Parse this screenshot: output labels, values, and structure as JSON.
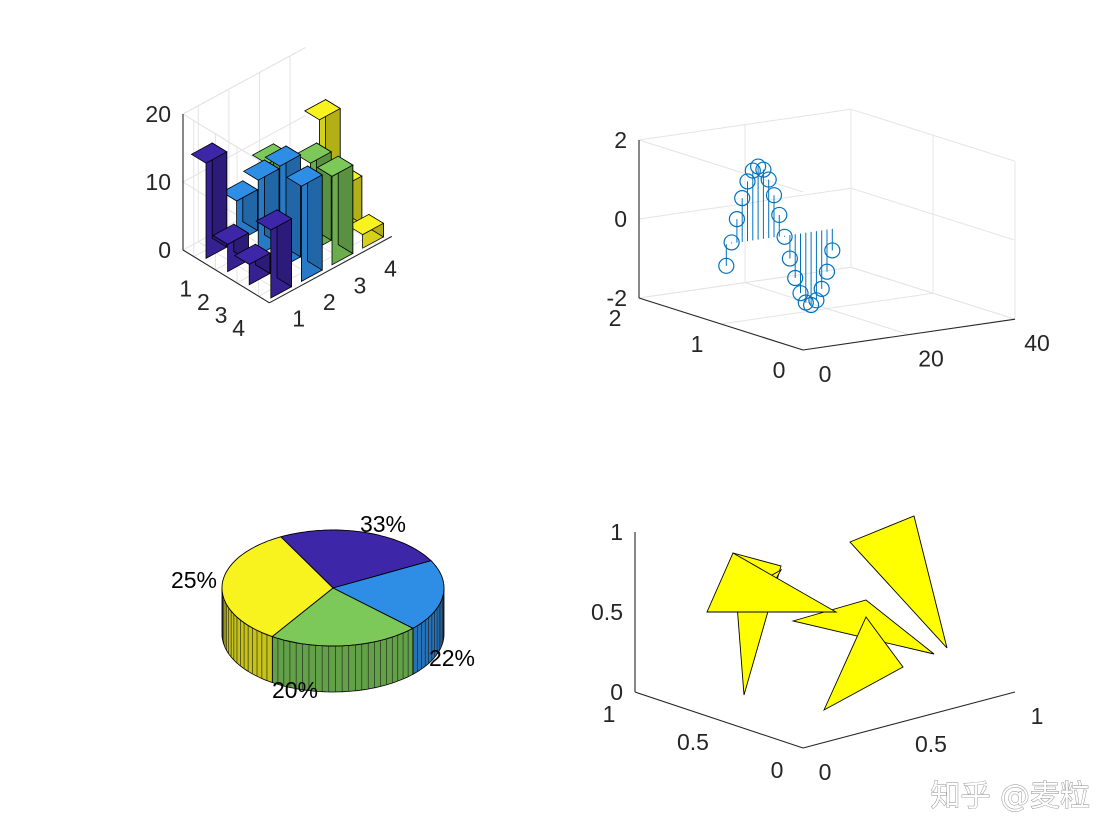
{
  "chart_data": [
    {
      "type": "bar3",
      "rows": [
        "1",
        "2",
        "3",
        "4"
      ],
      "columns": [
        "1",
        "2",
        "3",
        "4"
      ],
      "values": [
        [
          14,
          6,
          9,
          3
        ],
        [
          4,
          11,
          7,
          15
        ],
        [
          3,
          15,
          13,
          7
        ],
        [
          10,
          14,
          13,
          2
        ]
      ],
      "zlim": [
        0,
        20
      ],
      "z_ticks": [
        "0",
        "10",
        "20"
      ],
      "grid": true,
      "colors": [
        "#3e26a8",
        "#2e8ee6",
        "#7cc95a",
        "#f8f31e"
      ]
    },
    {
      "type": "stem3",
      "n_points": 21,
      "x_range": [
        1,
        21
      ],
      "y_value": 1,
      "z_function": "sin",
      "xlim": [
        0,
        40
      ],
      "ylim": [
        0,
        2
      ],
      "zlim": [
        -2,
        2
      ],
      "x_ticks": [
        "0",
        "20",
        "40"
      ],
      "y_ticks": [
        "0",
        "1",
        "2"
      ],
      "z_ticks": [
        "-2",
        "0",
        "2"
      ],
      "grid": true,
      "color": "#0072bd"
    },
    {
      "type": "pie3",
      "slices": [
        {
          "value": 25,
          "label": "25%",
          "color": "#3e26a8"
        },
        {
          "value": 20,
          "label": "20%",
          "color": "#2e8ee6"
        },
        {
          "value": 22,
          "label": "22%",
          "color": "#7cc95a"
        },
        {
          "value": 33,
          "label": "33%",
          "color": "#f8f31e"
        }
      ]
    },
    {
      "type": "fill3",
      "triangle_count": 5,
      "color": "#ffff00",
      "xlim": [
        0,
        1
      ],
      "ylim": [
        0,
        1
      ],
      "zlim": [
        0,
        1
      ],
      "x_ticks": [
        "0",
        "0.5",
        "1"
      ],
      "y_ticks": [
        "0",
        "0.5",
        "1"
      ],
      "z_ticks": [
        "0",
        "0.5",
        "1"
      ],
      "grid": false
    }
  ],
  "watermark": "知乎 @麦粒"
}
